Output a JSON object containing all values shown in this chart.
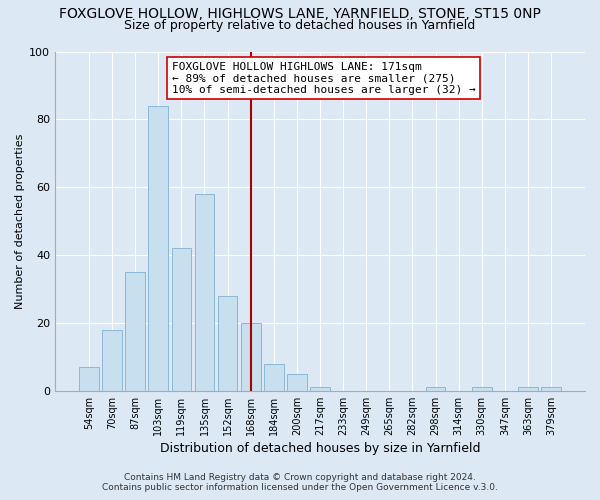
{
  "title": "FOXGLOVE HOLLOW, HIGHLOWS LANE, YARNFIELD, STONE, ST15 0NP",
  "subtitle": "Size of property relative to detached houses in Yarnfield",
  "xlabel": "Distribution of detached houses by size in Yarnfield",
  "ylabel": "Number of detached properties",
  "bar_labels": [
    "54sqm",
    "70sqm",
    "87sqm",
    "103sqm",
    "119sqm",
    "135sqm",
    "152sqm",
    "168sqm",
    "184sqm",
    "200sqm",
    "217sqm",
    "233sqm",
    "249sqm",
    "265sqm",
    "282sqm",
    "298sqm",
    "314sqm",
    "330sqm",
    "347sqm",
    "363sqm",
    "379sqm"
  ],
  "bar_values": [
    7,
    18,
    35,
    84,
    42,
    58,
    28,
    20,
    8,
    5,
    1,
    0,
    0,
    0,
    0,
    1,
    0,
    1,
    0,
    1,
    1
  ],
  "bar_color": "#c8dff0",
  "bar_edge_color": "#8ab8d8",
  "highlight_bar_index": 7,
  "highlight_bar_color": "#c8dff0",
  "highlight_bar_edge_color": "#8ab8d8",
  "vline_color": "#aa0000",
  "ylim": [
    0,
    100
  ],
  "yticks": [
    0,
    20,
    40,
    60,
    80,
    100
  ],
  "annotation_line1": "FOXGLOVE HOLLOW HIGHLOWS LANE: 171sqm",
  "annotation_line2": "← 89% of detached houses are smaller (275)",
  "annotation_line3": "10% of semi-detached houses are larger (32) →",
  "annotation_box_color": "#ffffff",
  "annotation_box_edge_color": "#cc0000",
  "background_color": "#dde8f5",
  "footer_line1": "Contains HM Land Registry data © Crown copyright and database right 2024.",
  "footer_line2": "Contains public sector information licensed under the Open Government Licence v.3.0.",
  "title_fontsize": 10,
  "subtitle_fontsize": 9,
  "grid_color": "#ffffff"
}
